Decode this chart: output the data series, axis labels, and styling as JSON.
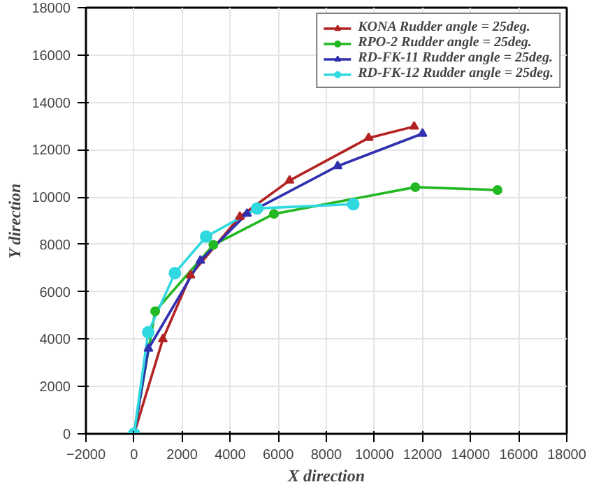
{
  "chart_data": {
    "type": "line",
    "xlabel": "X direction",
    "ylabel": "Y direction",
    "xlim": [
      -2000,
      18000
    ],
    "ylim": [
      0,
      18000
    ],
    "xticks": [
      -2000,
      0,
      2000,
      4000,
      6000,
      8000,
      10000,
      12000,
      14000,
      16000,
      18000
    ],
    "yticks": [
      0,
      2000,
      4000,
      6000,
      8000,
      10000,
      12000,
      14000,
      16000,
      18000
    ],
    "grid": true,
    "legend": "top right",
    "line_style": "solid",
    "series": [
      {
        "name": "KONA Rudder angle = 25deg.",
        "color": "#b22222",
        "marker": "triangle",
        "x": [
          0,
          1200,
          2350,
          4400,
          6470,
          9760,
          11650
        ],
        "values": [
          0,
          4000,
          6700,
          9170,
          10700,
          12500,
          12980
        ]
      },
      {
        "name": "RPO-2 Rudder angle = 25deg.",
        "color": "#22b822",
        "marker": "circle",
        "x": [
          0,
          880,
          3300,
          5820,
          11700,
          15120
        ],
        "values": [
          0,
          5180,
          7980,
          9290,
          10420,
          10300
        ]
      },
      {
        "name": "RD-FK-11 Rudder angle = 25deg.",
        "color": "#3030b0",
        "marker": "triangle",
        "x": [
          0,
          600,
          2760,
          4700,
          8470,
          12000
        ],
        "values": [
          0,
          3600,
          7320,
          9300,
          11310,
          12680
        ]
      },
      {
        "name": "RD-FK-12 Rudder angle = 25deg.",
        "color": "#30d8e0",
        "marker": "circle",
        "x": [
          0,
          590,
          1700,
          3000,
          5120,
          9120
        ],
        "values": [
          0,
          4290,
          6790,
          8330,
          9520,
          9700
        ]
      }
    ]
  }
}
